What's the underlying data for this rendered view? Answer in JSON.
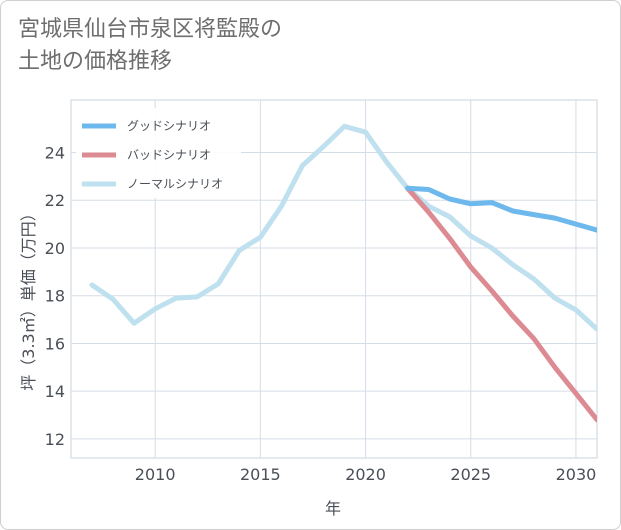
{
  "title": "宮城県仙台市泉区将監殿の\n土地の価格推移",
  "chart_data": {
    "type": "line",
    "xlabel": "年",
    "ylabel": "坪（3.3㎡）単価（万円）",
    "xlim": [
      2006,
      2031
    ],
    "ylim": [
      11.2,
      26.2
    ],
    "x_ticks": [
      2010,
      2015,
      2020,
      2025,
      2030
    ],
    "y_ticks": [
      12,
      14,
      16,
      18,
      20,
      22,
      24
    ],
    "grid": true,
    "legend_position": "top-left",
    "series": [
      {
        "name": "グッドシナリオ",
        "color": "#6db8ec",
        "x": [
          2022,
          2023,
          2024,
          2025,
          2026,
          2027,
          2028,
          2029,
          2030,
          2031
        ],
        "y": [
          22.5,
          22.45,
          22.05,
          21.85,
          21.9,
          21.55,
          21.4,
          21.25,
          21.0,
          20.75
        ]
      },
      {
        "name": "バッドシナリオ",
        "color": "#dd8b93",
        "x": [
          2022,
          2023,
          2024,
          2025,
          2026,
          2027,
          2028,
          2029,
          2030,
          2031
        ],
        "y": [
          22.5,
          21.5,
          20.4,
          19.2,
          18.2,
          17.15,
          16.2,
          15.0,
          13.9,
          12.8
        ]
      },
      {
        "name": "ノーマルシナリオ",
        "color": "#bfe0ee",
        "x": [
          2007,
          2008,
          2009,
          2010,
          2011,
          2012,
          2013,
          2014,
          2015,
          2016,
          2017,
          2018,
          2019,
          2020,
          2021,
          2022,
          2023,
          2024,
          2025,
          2026,
          2027,
          2028,
          2029,
          2030,
          2031
        ],
        "y": [
          18.45,
          17.85,
          16.85,
          17.45,
          17.9,
          17.95,
          18.5,
          19.9,
          20.45,
          21.75,
          23.45,
          24.25,
          25.1,
          24.85,
          23.6,
          22.5,
          21.75,
          21.3,
          20.5,
          20.0,
          19.3,
          18.7,
          17.9,
          17.4,
          16.6
        ]
      }
    ]
  }
}
